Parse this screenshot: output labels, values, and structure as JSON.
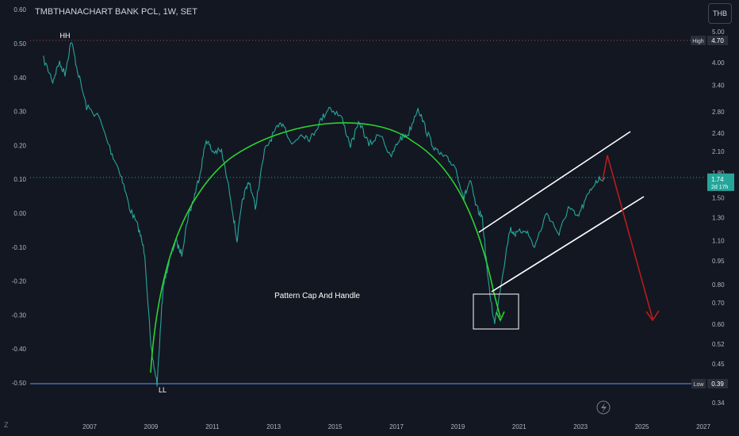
{
  "title": "TMBTHANACHART BANK PCL, 1W, SET",
  "currency_button": "THB",
  "logo": "Z",
  "colors": {
    "background": "#131722",
    "price": "#26a69a",
    "arc": "#2bd431",
    "channel": "#ffffff",
    "projection": "#b71c1c",
    "high_line": "#ef5350",
    "low_line": "#5b9cf6",
    "last_line": "#26a69a",
    "axis_text": "#b2b5be"
  },
  "chart_data": {
    "type": "line",
    "title": "TMBTHANACHART BANK PCL, 1W, SET",
    "x_ticks": [
      "2007",
      "2009",
      "2011",
      "2013",
      "2015",
      "2017",
      "2019",
      "2021",
      "2023",
      "2025",
      "2027"
    ],
    "left_axis_ticks": [
      0.6,
      0.5,
      0.4,
      0.3,
      0.2,
      0.1,
      0.0,
      -0.1,
      -0.2,
      -0.3,
      -0.4,
      -0.5
    ],
    "left_axis_labels": [
      "0.60",
      "0.50",
      "0.40",
      "0.30",
      "0.20",
      "0.10",
      "0.00",
      "-0.10",
      "-0.20",
      "-0.30",
      "-0.40",
      "-0.50"
    ],
    "right_axis_scale": "log",
    "right_axis_ticks": [
      5.0,
      4.0,
      3.4,
      2.8,
      2.4,
      2.1,
      1.8,
      1.5,
      1.3,
      1.1,
      0.95,
      0.8,
      0.7,
      0.6,
      0.52,
      0.45,
      0.34
    ],
    "right_axis_labels": [
      "5.00",
      "4.00",
      "3.40",
      "2.80",
      "2.40",
      "2.10",
      "1.80",
      "1.50",
      "1.30",
      "1.10",
      "0.95",
      "0.80",
      "0.70",
      "0.60",
      "0.52",
      "0.45",
      "0.34"
    ],
    "series": [
      {
        "values_thb": [
          [
            2005.5,
            4.1
          ],
          [
            2005.8,
            3.5
          ],
          [
            2006.0,
            4.0
          ],
          [
            2006.2,
            3.7
          ],
          [
            2006.4,
            4.7
          ],
          [
            2006.6,
            3.8
          ],
          [
            2006.9,
            2.9
          ],
          [
            2007.3,
            2.7
          ],
          [
            2007.7,
            2.1
          ],
          [
            2008.0,
            1.8
          ],
          [
            2008.3,
            1.4
          ],
          [
            2008.6,
            1.2
          ],
          [
            2008.8,
            1.0
          ],
          [
            2009.0,
            0.5
          ],
          [
            2009.2,
            0.39
          ],
          [
            2009.4,
            0.8
          ],
          [
            2009.6,
            0.95
          ],
          [
            2009.8,
            1.1
          ],
          [
            2010.0,
            1.0
          ],
          [
            2010.2,
            1.3
          ],
          [
            2010.4,
            1.5
          ],
          [
            2010.6,
            1.8
          ],
          [
            2010.8,
            2.3
          ],
          [
            2011.0,
            2.1
          ],
          [
            2011.3,
            2.1
          ],
          [
            2011.6,
            1.5
          ],
          [
            2011.8,
            1.1
          ],
          [
            2012.0,
            1.5
          ],
          [
            2012.2,
            1.7
          ],
          [
            2012.4,
            1.4
          ],
          [
            2012.7,
            2.1
          ],
          [
            2013.0,
            2.4
          ],
          [
            2013.3,
            2.6
          ],
          [
            2013.6,
            2.2
          ],
          [
            2013.9,
            2.4
          ],
          [
            2014.2,
            2.3
          ],
          [
            2014.5,
            2.6
          ],
          [
            2014.8,
            2.9
          ],
          [
            2015.2,
            2.7
          ],
          [
            2015.5,
            2.2
          ],
          [
            2015.8,
            2.6
          ],
          [
            2016.1,
            2.2
          ],
          [
            2016.5,
            2.4
          ],
          [
            2016.8,
            2.0
          ],
          [
            2017.1,
            2.3
          ],
          [
            2017.4,
            2.4
          ],
          [
            2017.7,
            2.9
          ],
          [
            2018.0,
            2.4
          ],
          [
            2018.3,
            2.1
          ],
          [
            2018.6,
            2.0
          ],
          [
            2018.9,
            1.9
          ],
          [
            2019.2,
            1.5
          ],
          [
            2019.4,
            1.7
          ],
          [
            2019.6,
            1.4
          ],
          [
            2019.8,
            1.3
          ],
          [
            2020.0,
            0.8
          ],
          [
            2020.2,
            0.6
          ],
          [
            2020.4,
            0.8
          ],
          [
            2020.7,
            1.2
          ],
          [
            2020.9,
            1.15
          ],
          [
            2021.2,
            1.2
          ],
          [
            2021.5,
            1.05
          ],
          [
            2021.9,
            1.35
          ],
          [
            2022.3,
            1.15
          ],
          [
            2022.6,
            1.4
          ],
          [
            2022.9,
            1.3
          ],
          [
            2023.2,
            1.5
          ],
          [
            2023.5,
            1.7
          ],
          [
            2023.8,
            1.74
          ]
        ]
      }
    ],
    "high_label": "High",
    "high_value": "4.70",
    "low_label": "Low",
    "low_value": "0.39",
    "last_value": "1.74",
    "last_countdown": "2d 17h",
    "annotations": {
      "hh": "HH",
      "ll": "LL",
      "pattern": "Pattern Cap And Handle"
    }
  }
}
